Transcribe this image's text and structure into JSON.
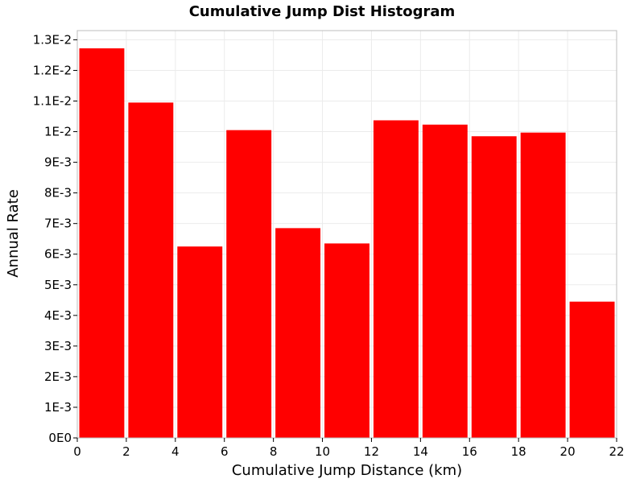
{
  "chart_data": {
    "type": "bar",
    "title": "Cumulative Jump Dist Histogram",
    "xlabel": "Cumulative Jump Distance (km)",
    "ylabel": "Annual Rate",
    "xlim": [
      0,
      22
    ],
    "ylim": [
      0,
      0.0133
    ],
    "x_ticks": [
      0,
      2,
      4,
      6,
      8,
      10,
      12,
      14,
      16,
      18,
      20,
      22
    ],
    "y_ticks": [
      {
        "value": 0,
        "label": "0E0"
      },
      {
        "value": 0.001,
        "label": "1E-3"
      },
      {
        "value": 0.002,
        "label": "2E-3"
      },
      {
        "value": 0.003,
        "label": "3E-3"
      },
      {
        "value": 0.004,
        "label": "4E-3"
      },
      {
        "value": 0.005,
        "label": "5E-3"
      },
      {
        "value": 0.006,
        "label": "6E-3"
      },
      {
        "value": 0.007,
        "label": "7E-3"
      },
      {
        "value": 0.008,
        "label": "8E-3"
      },
      {
        "value": 0.009,
        "label": "9E-3"
      },
      {
        "value": 0.01,
        "label": "1E-2"
      },
      {
        "value": 0.011,
        "label": "1.1E-2"
      },
      {
        "value": 0.012,
        "label": "1.2E-2"
      },
      {
        "value": 0.013,
        "label": "1.3E-2"
      }
    ],
    "bin_width": 2,
    "bin_starts": [
      0,
      2,
      4,
      6,
      8,
      10,
      12,
      14,
      16,
      18,
      20
    ],
    "values": [
      0.01272,
      0.01095,
      0.00625,
      0.01005,
      0.00685,
      0.00635,
      0.01037,
      0.01023,
      0.00985,
      0.00997,
      0.00445
    ],
    "bar_color": "#ff0000",
    "grid": true,
    "grid_color": "#ebebeb",
    "legend": "none"
  }
}
